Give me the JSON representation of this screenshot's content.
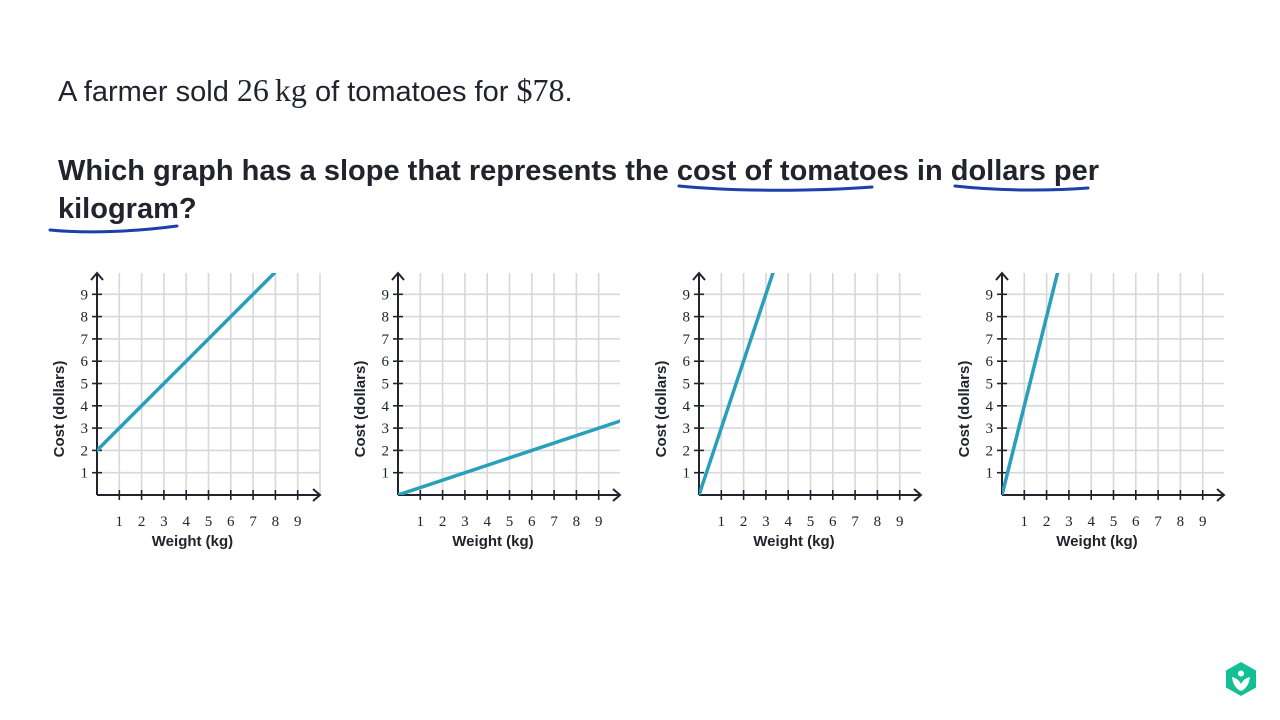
{
  "problem": {
    "line1": {
      "prefix": "A farmer sold ",
      "qty": "26",
      "unit": "kg",
      "middle": " of tomatoes for ",
      "price": "$78",
      "end": "."
    },
    "question": {
      "part1": "Which graph has a slope that represents the ",
      "highlight1": "cost of tomatoes",
      "part2": " in ",
      "highlight2a": "dollars per",
      "highlight2b": "kilogram",
      "end": "?"
    }
  },
  "colors": {
    "line": "#2a9fbc",
    "grid": "#d6d8da",
    "axis": "#21242c",
    "ink": "#1c3faa"
  },
  "chart_data": [
    {
      "type": "line",
      "xlabel": "Weight (kg)",
      "ylabel": "Cost (dollars)",
      "xlim": [
        0,
        10
      ],
      "ylim": [
        0,
        10
      ],
      "x_ticks": [
        "1",
        "2",
        "3",
        "4",
        "5",
        "6",
        "7",
        "8",
        "9"
      ],
      "y_ticks": [
        "1",
        "2",
        "3",
        "4",
        "5",
        "6",
        "7",
        "8",
        "9"
      ],
      "grid": true,
      "series": [
        {
          "x": [
            0,
            8
          ],
          "y": [
            2,
            10
          ]
        }
      ]
    },
    {
      "type": "line",
      "xlabel": "Weight (kg)",
      "ylabel": "Cost (dollars)",
      "xlim": [
        0,
        10
      ],
      "ylim": [
        0,
        10
      ],
      "x_ticks": [
        "1",
        "2",
        "3",
        "4",
        "5",
        "6",
        "7",
        "8",
        "9"
      ],
      "y_ticks": [
        "1",
        "2",
        "3",
        "4",
        "5",
        "6",
        "7",
        "8",
        "9"
      ],
      "grid": true,
      "series": [
        {
          "x": [
            0,
            10
          ],
          "y": [
            0,
            3.33
          ]
        }
      ]
    },
    {
      "type": "line",
      "xlabel": "Weight (kg)",
      "ylabel": "Cost (dollars)",
      "xlim": [
        0,
        10
      ],
      "ylim": [
        0,
        10
      ],
      "x_ticks": [
        "1",
        "2",
        "3",
        "4",
        "5",
        "6",
        "7",
        "8",
        "9"
      ],
      "y_ticks": [
        "1",
        "2",
        "3",
        "4",
        "5",
        "6",
        "7",
        "8",
        "9"
      ],
      "grid": true,
      "series": [
        {
          "x": [
            0,
            3.33
          ],
          "y": [
            0,
            10
          ]
        }
      ]
    },
    {
      "type": "line",
      "xlabel": "Weight (kg)",
      "ylabel": "Cost (dollars)",
      "xlim": [
        0,
        10
      ],
      "ylim": [
        0,
        10
      ],
      "x_ticks": [
        "1",
        "2",
        "3",
        "4",
        "5",
        "6",
        "7",
        "8",
        "9"
      ],
      "y_ticks": [
        "1",
        "2",
        "3",
        "4",
        "5",
        "6",
        "7",
        "8",
        "9"
      ],
      "grid": true,
      "series": [
        {
          "x": [
            0,
            2.5
          ],
          "y": [
            0,
            10
          ]
        }
      ]
    }
  ],
  "branding": {
    "logo_icon": "khan-academy-logo-icon",
    "logo_color": "#14bf96"
  }
}
